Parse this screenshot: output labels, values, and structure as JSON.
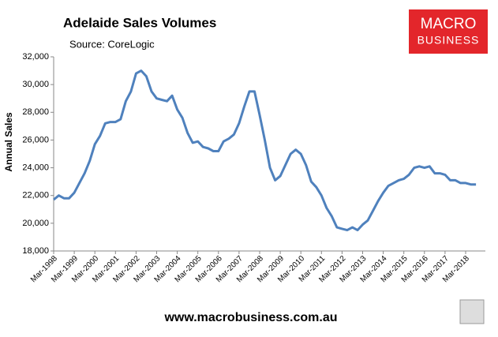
{
  "chart_data": {
    "type": "line",
    "title": "Adelaide Sales Volumes",
    "subtitle": "Source: CoreLogic",
    "y_label": "Annual Sales",
    "logo": [
      "MACRO",
      "BUSINESS"
    ],
    "footer": "www.macrobusiness.com.au",
    "categories": [
      "Mar-1998",
      null,
      null,
      null,
      "Mar-1999",
      null,
      null,
      null,
      "Mar-2000",
      null,
      null,
      null,
      "Mar-2001",
      null,
      null,
      null,
      "Mar-2002",
      null,
      null,
      null,
      "Mar-2003",
      null,
      null,
      null,
      "Mar-2004",
      null,
      null,
      null,
      "Mar-2005",
      null,
      null,
      null,
      "Mar-2006",
      null,
      null,
      null,
      "Mar-2007",
      null,
      null,
      null,
      "Mar-2008",
      null,
      null,
      null,
      "Mar-2009",
      null,
      null,
      null,
      "Mar-2010",
      null,
      null,
      null,
      "Mar-2011",
      null,
      null,
      null,
      "Mar-2012",
      null,
      null,
      null,
      "Mar-2013",
      null,
      null,
      null,
      "Mar-2014",
      null,
      null,
      null,
      "Mar-2015",
      null,
      null,
      null,
      "Mar-2016",
      null,
      null,
      null,
      "Mar-2017",
      null,
      null,
      null,
      "Mar-2018",
      null,
      null
    ],
    "series": [
      {
        "name": "Adelaide",
        "color": "#4f81bd",
        "values": [
          21700,
          22000,
          21800,
          21800,
          22200,
          22900,
          23600,
          24500,
          25700,
          26300,
          27200,
          27300,
          27300,
          27500,
          28800,
          29500,
          30800,
          31000,
          30600,
          29500,
          29000,
          28900,
          28800,
          29200,
          28200,
          27600,
          26500,
          25800,
          25900,
          25500,
          25400,
          25200,
          25200,
          25900,
          26100,
          26400,
          27200,
          28400,
          29500,
          29500,
          27800,
          26000,
          24000,
          23100,
          23400,
          24200,
          25000,
          25300,
          25000,
          24200,
          23000,
          22600,
          22000,
          21100,
          20500,
          19700,
          19600,
          19500,
          19700,
          19500,
          19900,
          20200,
          20900,
          21600,
          22200,
          22700,
          22900,
          23100,
          23200,
          23500,
          24000,
          24100,
          24000,
          24100,
          23600,
          23600,
          23500,
          23100,
          23100,
          22900,
          22900,
          22800,
          22800
        ]
      }
    ],
    "ylim": [
      18000,
      32000
    ],
    "yticks": [
      {
        "value": 18000,
        "label": "18,000"
      },
      {
        "value": 20000,
        "label": "20,000"
      },
      {
        "value": 22000,
        "label": "22,000"
      },
      {
        "value": 24000,
        "label": "24,000"
      },
      {
        "value": 26000,
        "label": "26,000"
      },
      {
        "value": 28000,
        "label": "28,000"
      },
      {
        "value": 30000,
        "label": "30,000"
      },
      {
        "value": 32000,
        "label": "32,000"
      }
    ],
    "grid": false
  }
}
